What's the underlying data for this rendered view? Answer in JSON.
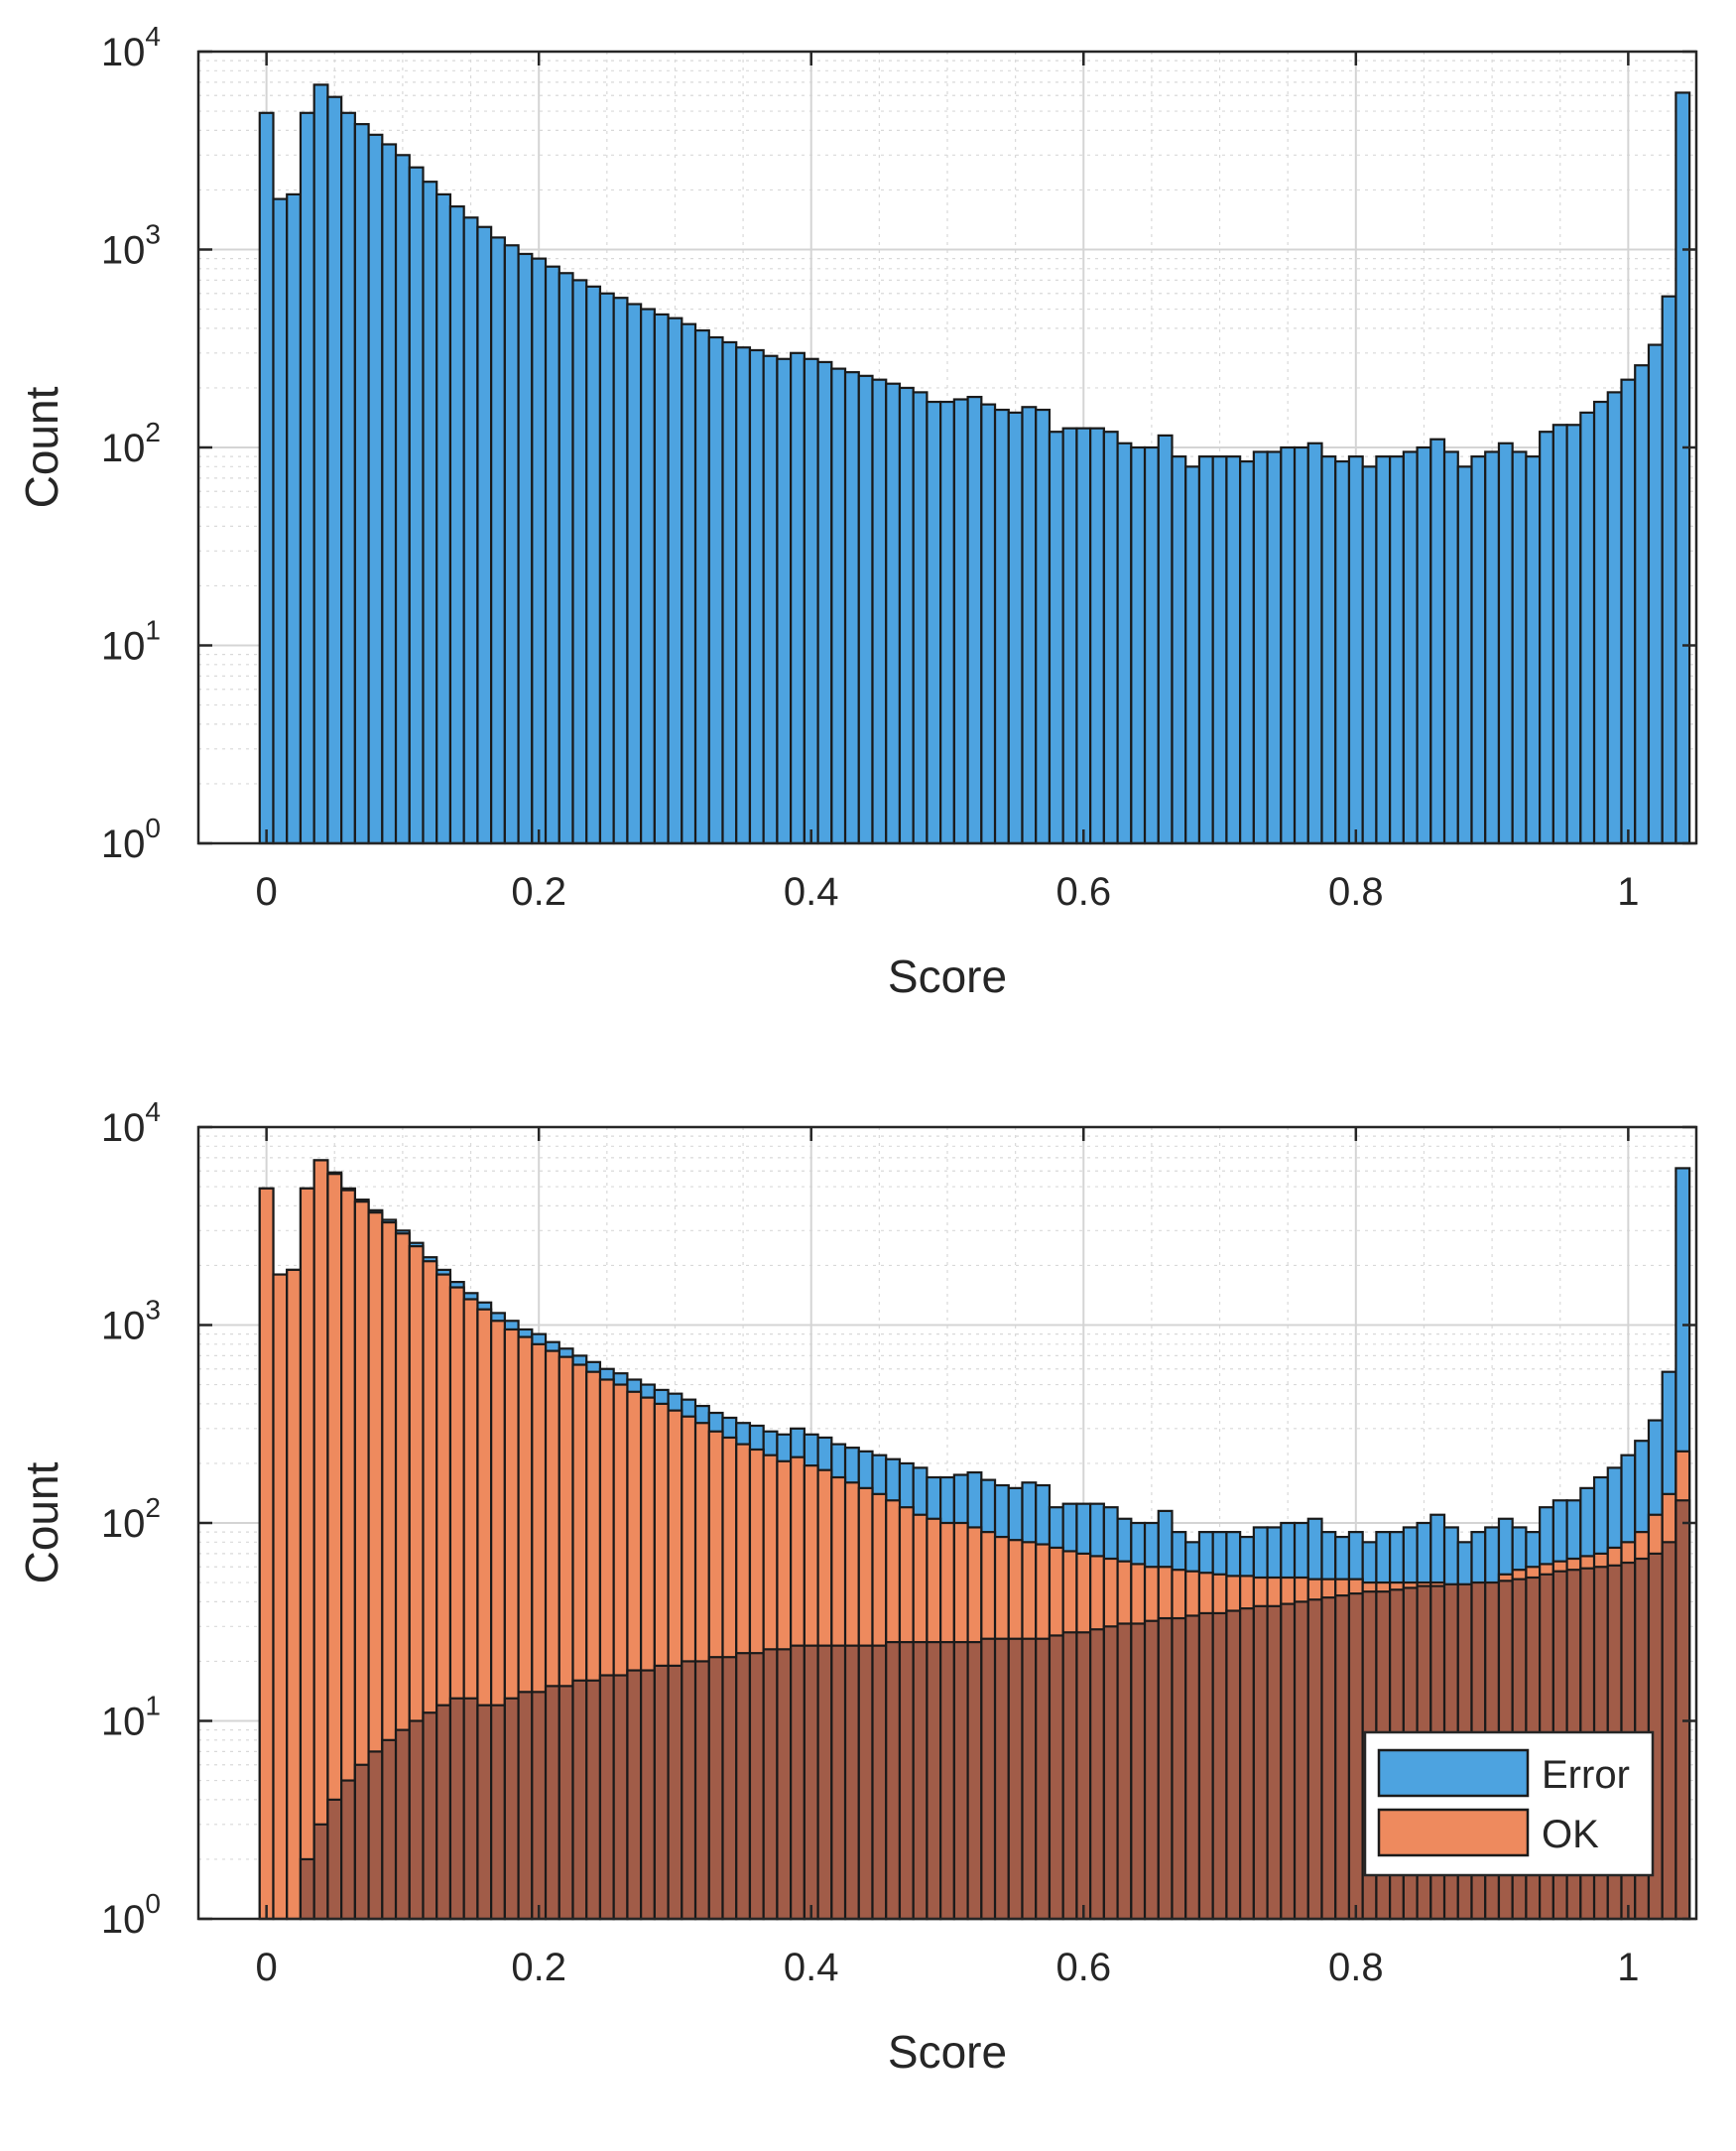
{
  "chart_data": [
    {
      "type": "bar",
      "xlabel": "Score",
      "ylabel": "Count",
      "yscale": "log",
      "ylim": [
        1,
        10000
      ],
      "xlim": [
        -0.05,
        1.05
      ],
      "xticks": [
        0,
        0.2,
        0.4,
        0.6,
        0.8,
        1
      ],
      "xtick_labels": [
        "0",
        "0.2",
        "0.4",
        "0.6",
        "0.8",
        "1"
      ],
      "yticks": [
        1,
        10,
        100,
        1000,
        10000
      ],
      "ytick_labels": [
        {
          "base": "10",
          "exp": "0"
        },
        {
          "base": "10",
          "exp": "1"
        },
        {
          "base": "10",
          "exp": "2"
        },
        {
          "base": "10",
          "exp": "3"
        },
        {
          "base": "10",
          "exp": "4"
        }
      ],
      "grid": true,
      "minor_grid": true,
      "bin_width": 0.01,
      "bin_start": 0,
      "series": [
        {
          "color": "#4DA3E0",
          "values": [
            4900,
            1800,
            1900,
            4900,
            6800,
            5900,
            4900,
            4300,
            3800,
            3400,
            3000,
            2600,
            2200,
            1900,
            1650,
            1450,
            1300,
            1150,
            1050,
            950,
            900,
            820,
            760,
            700,
            650,
            600,
            570,
            530,
            500,
            470,
            450,
            420,
            390,
            360,
            340,
            320,
            310,
            290,
            280,
            300,
            280,
            270,
            250,
            240,
            230,
            220,
            210,
            200,
            190,
            170,
            170,
            175,
            180,
            165,
            155,
            150,
            160,
            155,
            120,
            125,
            125,
            125,
            120,
            105,
            100,
            100,
            115,
            90,
            80,
            90,
            90,
            90,
            85,
            95,
            95,
            100,
            100,
            105,
            90,
            85,
            90,
            80,
            90,
            90,
            95,
            100,
            110,
            95,
            80,
            90,
            95,
            105,
            95,
            90,
            120,
            130,
            130,
            150,
            170,
            190,
            220,
            260,
            330,
            580,
            6200
          ]
        }
      ]
    },
    {
      "type": "bar",
      "xlabel": "Score",
      "ylabel": "Count",
      "yscale": "log",
      "ylim": [
        1,
        10000
      ],
      "xlim": [
        -0.05,
        1.05
      ],
      "xticks": [
        0,
        0.2,
        0.4,
        0.6,
        0.8,
        1
      ],
      "xtick_labels": [
        "0",
        "0.2",
        "0.4",
        "0.6",
        "0.8",
        "1"
      ],
      "yticks": [
        1,
        10,
        100,
        1000,
        10000
      ],
      "ytick_labels": [
        {
          "base": "10",
          "exp": "0"
        },
        {
          "base": "10",
          "exp": "1"
        },
        {
          "base": "10",
          "exp": "2"
        },
        {
          "base": "10",
          "exp": "3"
        },
        {
          "base": "10",
          "exp": "4"
        }
      ],
      "grid": true,
      "minor_grid": true,
      "legend_placement": "bottom-right",
      "bin_width": 0.01,
      "bin_start": 0,
      "series": [
        {
          "name": "Error",
          "color": "#4DA3E0",
          "values": [
            4900,
            1800,
            1900,
            4900,
            6800,
            5900,
            4900,
            4300,
            3800,
            3400,
            3000,
            2600,
            2200,
            1900,
            1650,
            1450,
            1300,
            1150,
            1050,
            950,
            900,
            820,
            760,
            700,
            650,
            600,
            570,
            530,
            500,
            470,
            450,
            420,
            390,
            360,
            340,
            320,
            310,
            290,
            280,
            300,
            280,
            270,
            250,
            240,
            230,
            220,
            210,
            200,
            190,
            170,
            170,
            175,
            180,
            165,
            155,
            150,
            160,
            155,
            120,
            125,
            125,
            125,
            120,
            105,
            100,
            100,
            115,
            90,
            80,
            90,
            90,
            90,
            85,
            95,
            95,
            100,
            100,
            105,
            90,
            85,
            90,
            80,
            90,
            90,
            95,
            100,
            110,
            95,
            80,
            90,
            95,
            105,
            95,
            90,
            120,
            130,
            130,
            150,
            170,
            190,
            220,
            260,
            330,
            580,
            6200
          ]
        },
        {
          "name": "OK",
          "color": "#EE8A5E",
          "values": [
            4900,
            1800,
            1900,
            4900,
            6800,
            5800,
            4800,
            4200,
            3700,
            3300,
            2900,
            2500,
            2100,
            1800,
            1550,
            1350,
            1200,
            1050,
            950,
            870,
            800,
            740,
            690,
            630,
            580,
            530,
            500,
            460,
            430,
            400,
            370,
            345,
            320,
            290,
            270,
            250,
            235,
            220,
            205,
            215,
            195,
            185,
            170,
            160,
            150,
            140,
            130,
            120,
            110,
            105,
            100,
            100,
            95,
            90,
            85,
            82,
            80,
            78,
            75,
            72,
            70,
            68,
            66,
            64,
            62,
            60,
            60,
            58,
            57,
            56,
            55,
            54,
            54,
            53,
            53,
            53,
            53,
            52,
            52,
            52,
            52,
            50,
            50,
            50,
            50,
            50,
            50,
            48,
            46,
            46,
            48,
            55,
            58,
            60,
            62,
            64,
            66,
            68,
            70,
            75,
            80,
            90,
            110,
            140,
            230
          ]
        },
        {
          "name": "",
          "color": "#A15C48",
          "values": [
            1,
            1,
            1,
            2,
            3,
            4,
            5,
            6,
            7,
            8,
            9,
            10,
            11,
            12,
            13,
            13,
            12,
            12,
            13,
            14,
            14,
            15,
            15,
            16,
            16,
            17,
            17,
            18,
            18,
            19,
            19,
            20,
            20,
            21,
            21,
            22,
            22,
            23,
            23,
            24,
            24,
            24,
            24,
            24,
            24,
            24,
            25,
            25,
            25,
            25,
            25,
            25,
            25,
            26,
            26,
            26,
            26,
            26,
            27,
            28,
            28,
            29,
            30,
            31,
            31,
            32,
            33,
            33,
            34,
            35,
            35,
            36,
            37,
            38,
            38,
            39,
            40,
            41,
            42,
            43,
            44,
            45,
            45,
            46,
            47,
            48,
            48,
            49,
            49,
            50,
            50,
            51,
            52,
            53,
            55,
            57,
            58,
            59,
            60,
            61,
            63,
            66,
            70,
            80,
            130
          ]
        }
      ]
    }
  ]
}
